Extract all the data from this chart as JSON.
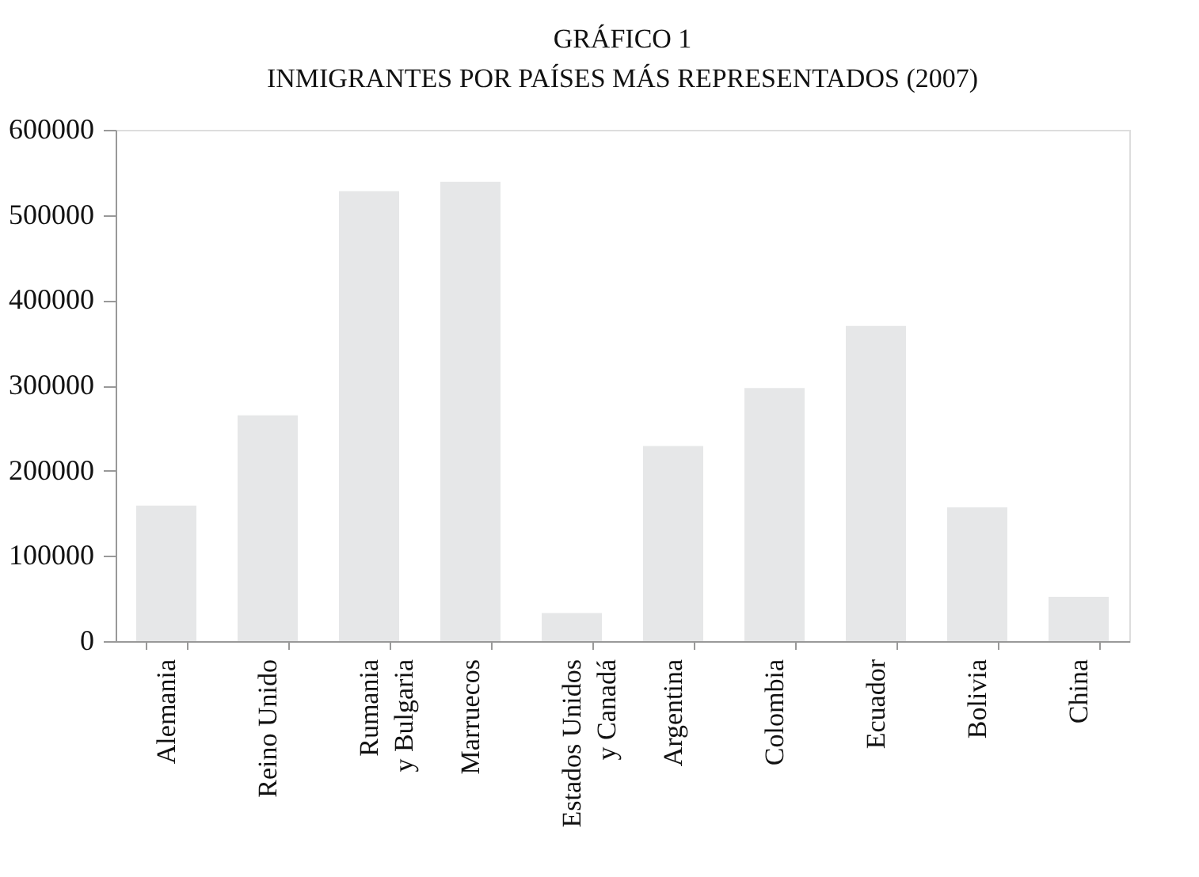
{
  "chart_data": {
    "type": "bar",
    "title": "GRÁFICO 1",
    "subtitle": "INMIGRANTES POR PAÍSES MÁS REPRESENTADOS (2007)",
    "categories": [
      "Alemania",
      "Reino Unido",
      "Rumania\ny Bulgaria",
      "Marruecos",
      "Estados Unidos\ny Canadá",
      "Argentina",
      "Colombia",
      "Ecuador",
      "Bolivia",
      "China"
    ],
    "values": [
      159000,
      265000,
      528000,
      539000,
      33000,
      229000,
      297000,
      370000,
      157000,
      52000
    ],
    "color": "#e6e7e8",
    "ylim": [
      0,
      600000
    ],
    "yticks": [
      0,
      100000,
      200000,
      300000,
      400000,
      500000,
      600000
    ],
    "grid": false
  }
}
